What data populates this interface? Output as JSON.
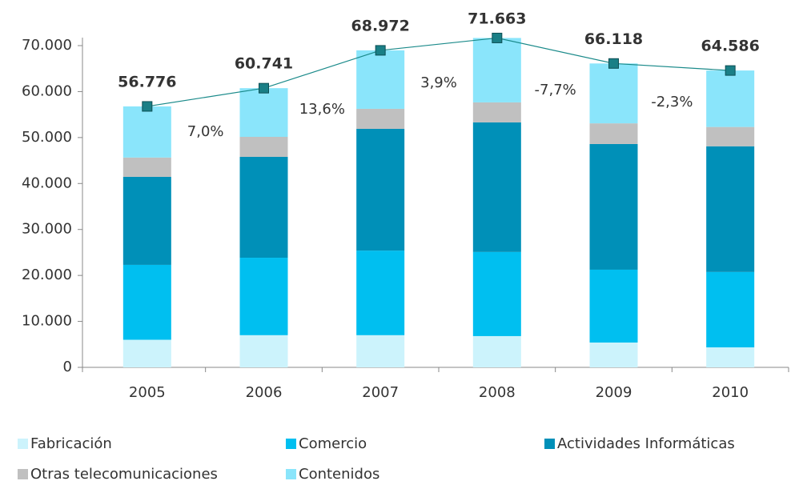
{
  "chart_data": {
    "type": "bar",
    "categories": [
      "2005",
      "2006",
      "2007",
      "2008",
      "2009",
      "2010"
    ],
    "series": [
      {
        "name": "Fabricación",
        "color": "#ccf3fc",
        "values": [
          6000,
          7000,
          7000,
          6800,
          5400,
          4350
        ]
      },
      {
        "name": "Comercio",
        "color": "#00bff0",
        "values": [
          16300,
          16850,
          18400,
          18300,
          15850,
          16400
        ]
      },
      {
        "name": "Actividades Informáticas",
        "color": "#0090b8",
        "values": [
          19150,
          21950,
          26500,
          28200,
          27340,
          27350
        ]
      },
      {
        "name": "Otras telecomunicaciones",
        "color": "#c0c0c0",
        "values": [
          4200,
          4350,
          4350,
          4350,
          4500,
          4200
        ]
      },
      {
        "name": "Contenidos",
        "color": "#8ae5fb",
        "values": [
          11126,
          10591,
          12722,
          14013,
          13028,
          12286
        ]
      }
    ],
    "total": {
      "type": "line",
      "color": "#1a8a8a",
      "values": [
        56776,
        60741,
        68972,
        71663,
        66118,
        64586
      ],
      "value_labels": [
        "56.776",
        "60.741",
        "68.972",
        "71.663",
        "66.118",
        "64.586"
      ]
    },
    "annotations": [
      "7,0%",
      "13,6%",
      "3,9%",
      "-7,7%",
      "-2,3%"
    ],
    "ylim": [
      0,
      70000
    ],
    "yticks": [
      {
        "value": 0,
        "label": "0"
      },
      {
        "value": 10000,
        "label": "10.000"
      },
      {
        "value": 20000,
        "label": "20.000"
      },
      {
        "value": 30000,
        "label": "30.000"
      },
      {
        "value": 40000,
        "label": "40.000"
      },
      {
        "value": 50000,
        "label": "50.000"
      },
      {
        "value": 60000,
        "label": "60.000"
      },
      {
        "value": 70000,
        "label": "70.000"
      }
    ],
    "legend": "bottom"
  }
}
